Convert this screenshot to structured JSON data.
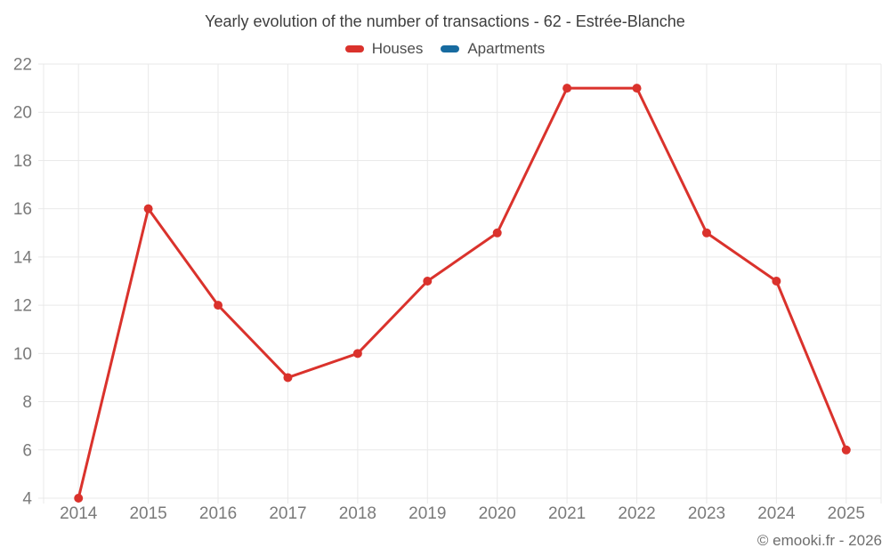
{
  "header": {
    "title": "Yearly evolution of the number of transactions - 62 - Estrée-Blanche"
  },
  "legend": {
    "items": [
      {
        "label": "Houses",
        "color": "#da322c"
      },
      {
        "label": "Apartments",
        "color": "#176ba0"
      }
    ]
  },
  "footer": {
    "copyright": "© emooki.fr - 2026"
  },
  "chart_data": {
    "type": "line",
    "title": "Yearly evolution of the number of transactions - 62 - Estrée-Blanche",
    "x": [
      "2014",
      "2015",
      "2016",
      "2017",
      "2018",
      "2019",
      "2020",
      "2021",
      "2022",
      "2023",
      "2024",
      "2025"
    ],
    "series": [
      {
        "name": "Houses",
        "color": "#da322c",
        "values": [
          4,
          16,
          12,
          9,
          10,
          13,
          15,
          21,
          21,
          15,
          13,
          6
        ]
      },
      {
        "name": "Apartments",
        "color": "#176ba0",
        "values": []
      }
    ],
    "xlabel": "",
    "ylabel": "",
    "ylim": [
      4,
      22
    ],
    "ytick_step": 2,
    "grid": true,
    "legend_position": "top",
    "marker_radius": 5,
    "line_width": 3
  },
  "style": {
    "grid_color": "#e9e9e9",
    "tick_label_color": "#7a7a7a",
    "title_color": "#3e3e3e",
    "legend_text_color": "#4c4c4c",
    "footer_color": "#6e6e6e",
    "background": "#ffffff"
  }
}
